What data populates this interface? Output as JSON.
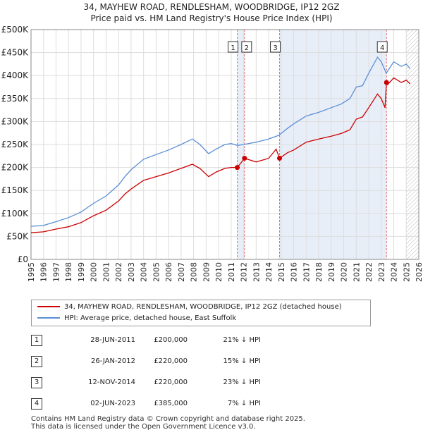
{
  "title_line1": "34, MAYHEW ROAD, RENDLESHAM, WOODBRIDGE, IP12 2GZ",
  "title_line2": "Price paid vs. HM Land Registry's House Price Index (HPI)",
  "colors": {
    "red": "#cc0000",
    "blue": "#5b8fd6",
    "shade": "#e8eef8",
    "vline": "#e07070"
  },
  "chart_data": {
    "type": "line",
    "xlim": [
      1995,
      2026
    ],
    "ylim": [
      0,
      500000
    ],
    "y_ticks": [
      {
        "value": 0,
        "label": "£0"
      },
      {
        "value": 50000,
        "label": "£50K"
      },
      {
        "value": 100000,
        "label": "£100K"
      },
      {
        "value": 150000,
        "label": "£150K"
      },
      {
        "value": 200000,
        "label": "£200K"
      },
      {
        "value": 250000,
        "label": "£250K"
      },
      {
        "value": 300000,
        "label": "£300K"
      },
      {
        "value": 350000,
        "label": "£350K"
      },
      {
        "value": 400000,
        "label": "£400K"
      },
      {
        "value": 450000,
        "label": "£450K"
      },
      {
        "value": 500000,
        "label": "£500K"
      }
    ],
    "x_ticks": [
      "1995",
      "1996",
      "1997",
      "1998",
      "1999",
      "2000",
      "2001",
      "2002",
      "2003",
      "2004",
      "2005",
      "2006",
      "2007",
      "2008",
      "2009",
      "2010",
      "2011",
      "2012",
      "2013",
      "2014",
      "2015",
      "2016",
      "2017",
      "2018",
      "2019",
      "2020",
      "2021",
      "2022",
      "2023",
      "2024",
      "2025",
      "2026"
    ],
    "series": [
      {
        "name": "HPI: Average price, detached house, East Suffolk",
        "color": "#5b8fd6",
        "x": [
          1995.0,
          1996.0,
          1997.0,
          1998.0,
          1999.0,
          2000.0,
          2001.0,
          2002.0,
          2002.5,
          2003.0,
          2004.0,
          2005.0,
          2006.0,
          2007.0,
          2007.9,
          2008.5,
          2009.2,
          2009.8,
          2010.5,
          2011.0,
          2011.5,
          2012.0,
          2013.0,
          2014.0,
          2014.8,
          2015.5,
          2016.0,
          2017.0,
          2018.0,
          2019.0,
          2019.8,
          2020.5,
          2021.0,
          2021.5,
          2022.0,
          2022.7,
          2023.0,
          2023.4,
          2024.0,
          2024.6,
          2025.0,
          2025.3
        ],
        "values": [
          72000,
          74000,
          82000,
          91000,
          103000,
          122000,
          138000,
          162000,
          180000,
          195000,
          218000,
          228000,
          238000,
          250000,
          262000,
          250000,
          230000,
          240000,
          250000,
          252000,
          248000,
          250000,
          255000,
          262000,
          270000,
          285000,
          295000,
          312000,
          320000,
          330000,
          338000,
          350000,
          375000,
          378000,
          405000,
          440000,
          430000,
          405000,
          430000,
          420000,
          425000,
          415000
        ]
      },
      {
        "name": "34, MAYHEW ROAD, RENDLESHAM, WOODBRIDGE, IP12 2GZ (detached house)",
        "color": "#cc0000",
        "x": [
          1995.0,
          1996.0,
          1997.0,
          1998.0,
          1999.0,
          2000.0,
          2001.0,
          2002.0,
          2002.5,
          2003.0,
          2004.0,
          2005.0,
          2006.0,
          2007.0,
          2007.9,
          2008.5,
          2009.2,
          2009.8,
          2010.5,
          2011.0,
          2011.49,
          2012.07,
          2013.0,
          2014.0,
          2014.6,
          2014.87,
          2015.5,
          2016.0,
          2017.0,
          2018.0,
          2019.0,
          2019.8,
          2020.5,
          2021.0,
          2021.5,
          2022.0,
          2022.7,
          2023.0,
          2023.3,
          2023.42,
          2023.5,
          2024.0,
          2024.6,
          2025.0,
          2025.3
        ],
        "values": [
          58000,
          60000,
          66000,
          71000,
          80000,
          95000,
          107000,
          127000,
          142000,
          153000,
          172000,
          180000,
          188000,
          198000,
          207000,
          198000,
          180000,
          190000,
          198000,
          200000,
          200000,
          220000,
          212000,
          220000,
          240000,
          220000,
          232000,
          238000,
          255000,
          262000,
          268000,
          274000,
          282000,
          305000,
          310000,
          330000,
          360000,
          350000,
          330000,
          385000,
          380000,
          395000,
          385000,
          390000,
          382000
        ]
      }
    ],
    "sales": [
      {
        "n": "1",
        "x": 2011.49,
        "price": 200000
      },
      {
        "n": "2",
        "x": 2012.07,
        "price": 220000
      },
      {
        "n": "3",
        "x": 2014.87,
        "price": 220000
      },
      {
        "n": "4",
        "x": 2023.42,
        "price": 385000
      }
    ],
    "shaded_ranges": [
      [
        2011.49,
        2012.07
      ],
      [
        2014.87,
        2023.42
      ]
    ],
    "hatched_from": 2025.0
  },
  "legend": {
    "red_label": "34, MAYHEW ROAD, RENDLESHAM, WOODBRIDGE, IP12 2GZ (detached house)",
    "blue_label": "HPI: Average price, detached house, East Suffolk"
  },
  "sales_table": [
    {
      "n": "1",
      "date": "28-JUN-2011",
      "price": "£200,000",
      "hpi": "21% ↓ HPI"
    },
    {
      "n": "2",
      "date": "26-JAN-2012",
      "price": "£220,000",
      "hpi": "15% ↓ HPI"
    },
    {
      "n": "3",
      "date": "12-NOV-2014",
      "price": "£220,000",
      "hpi": "23% ↓ HPI"
    },
    {
      "n": "4",
      "date": "02-JUN-2023",
      "price": "£385,000",
      "hpi": "7% ↓ HPI"
    }
  ],
  "footer_line1": "Contains HM Land Registry data © Crown copyright and database right 2025.",
  "footer_line2": "This data is licensed under the Open Government Licence v3.0."
}
